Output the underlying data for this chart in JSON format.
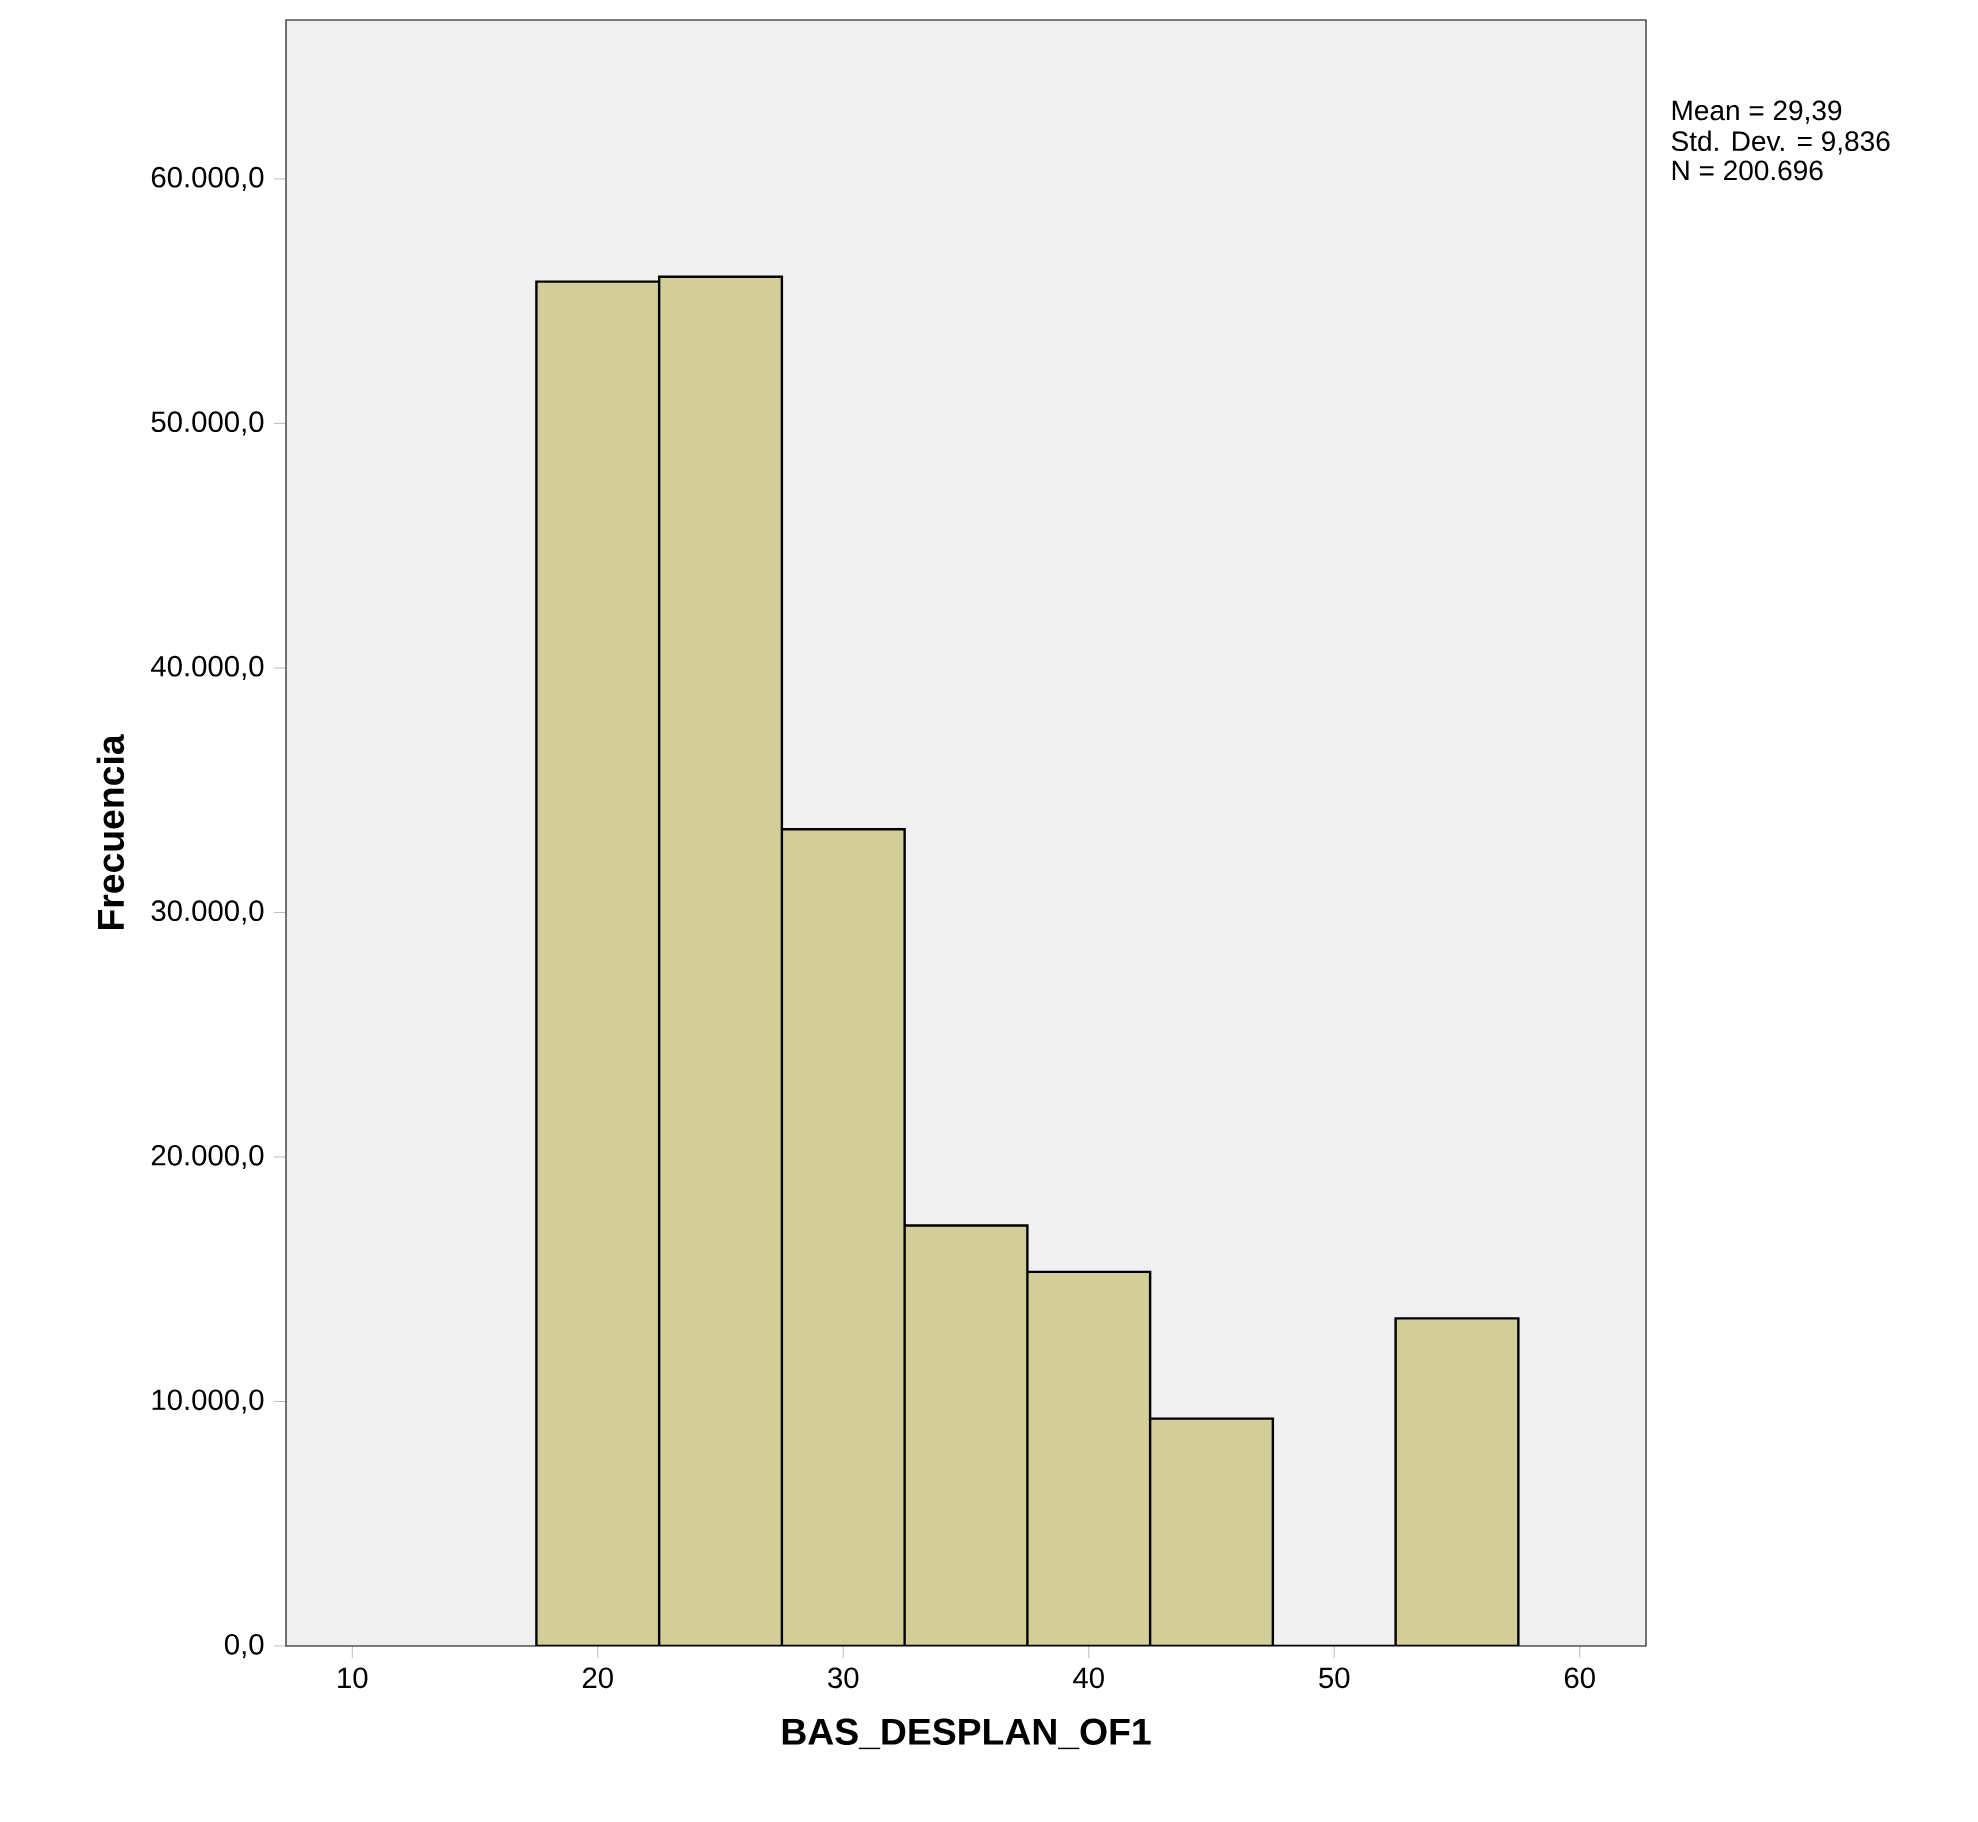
{
  "chart_data": {
    "type": "histogram",
    "xlabel": "BAS_DESPLAN_OF1",
    "ylabel": "Frecuencia",
    "color": "#d3ce98",
    "bins": [
      17.5,
      22.5,
      27.5,
      32.5,
      37.5,
      42.5,
      47.5,
      52.5,
      57.5
    ],
    "values": [
      55800,
      56000,
      33400,
      17200,
      15300,
      9300,
      0,
      13400
    ],
    "xlim": [
      7.3,
      62.7
    ],
    "ylim": [
      0,
      66500
    ],
    "xticks": [
      10,
      20,
      30,
      40,
      50,
      60
    ],
    "yticks": [
      {
        "value": 0,
        "label": "0,0"
      },
      {
        "value": 10000,
        "label": "10.000,0"
      },
      {
        "value": 20000,
        "label": "20.000,0"
      },
      {
        "value": 30000,
        "label": "30.000,0"
      },
      {
        "value": 40000,
        "label": "40.000,0"
      },
      {
        "value": 50000,
        "label": "50.000,0"
      },
      {
        "value": 60000,
        "label": "60.000,0"
      }
    ],
    "annotations": [
      "Mean = 29,39",
      "Std. Dev. = 9,836",
      "N = 200.696"
    ],
    "grid": false
  }
}
